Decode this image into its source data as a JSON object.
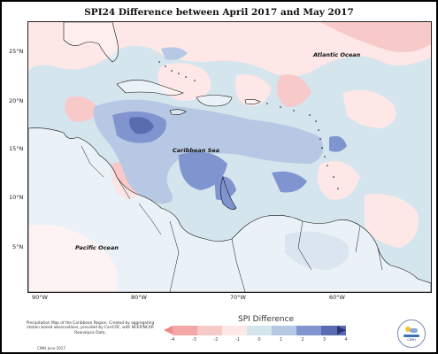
{
  "title": "SPI24 Difference between April 2017 and May 2017",
  "oceans": {
    "atlantic": "Atlantic Ocean",
    "caribbean": "Caribbean Sea",
    "pacific": "Pacific Ocean"
  },
  "lat_labels": [
    "25°N",
    "20°N",
    "15°N",
    "10°N",
    "5°N"
  ],
  "lon_labels": [
    "90°W",
    "80°W",
    "70°W",
    "60°W"
  ],
  "legend": {
    "title": "SPI Difference",
    "ticks": [
      "-4",
      "-3",
      "-2",
      "-1",
      "0",
      "1",
      "2",
      "3",
      "4"
    ],
    "colors": [
      "#f08a8a",
      "#f3a7a7",
      "#f7c9c9",
      "#fde7e7",
      "#d4e5ee",
      "#b6c8e3",
      "#8094cf",
      "#5a6cb0",
      "#2c3378"
    ]
  },
  "note": "Precipitation Map of the Caribbean Region. Created by aggregating station based observations, provided by CariCOF, with NCEP/NCAR Reanalysis Data.",
  "credit": "CIMH June 2017",
  "logo_text": "CIMH"
}
